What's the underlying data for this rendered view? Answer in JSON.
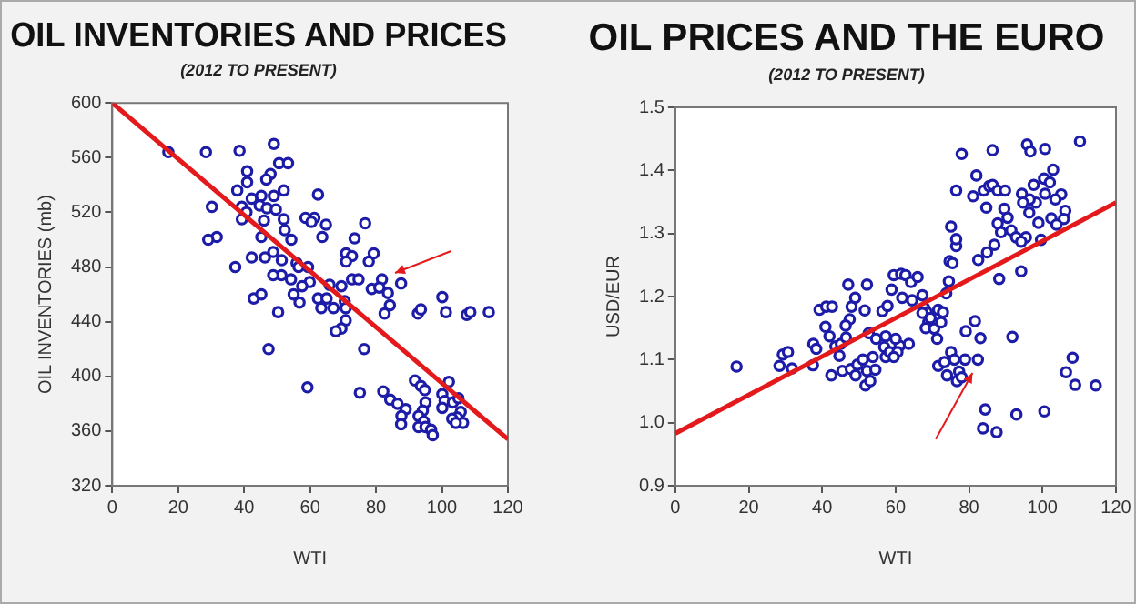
{
  "chart_data": [
    {
      "type": "scatter",
      "title": "OIL INVENTORIES AND PRICES",
      "subtitle": "(2012 TO PRESENT)",
      "xlabel": "WTI",
      "ylabel": "OIL INVENTORIES (mb)",
      "xlim": [
        0,
        120
      ],
      "xticks": [
        0,
        20,
        40,
        60,
        80,
        100,
        120
      ],
      "ylim": [
        320,
        600
      ],
      "yticks": [
        320,
        360,
        400,
        440,
        480,
        520,
        560,
        600
      ],
      "grid": false,
      "legend": false,
      "marker": "circle",
      "series": [
        {
          "type": "scatter",
          "color": "#1c1ca8",
          "x": [
            17,
            28.4,
            38.6,
            49,
            50.6,
            53.3,
            40.9,
            48,
            46.7,
            40.9,
            37.9,
            52,
            62.4,
            49,
            45.2,
            42.3,
            30.2,
            39.3,
            44.7,
            46.9,
            49.6,
            40.7,
            52,
            39.3,
            46,
            58.6,
            61.3,
            60.4,
            76.7,
            64.8,
            52.3,
            63.7,
            45.2,
            54.3,
            73.5,
            31.7,
            29.1,
            79.3,
            70.9,
            72.7,
            48.8,
            42.3,
            46.3,
            77.8,
            51.4,
            55.9,
            70.9,
            37.3,
            56.5,
            59.4,
            81.8,
            87.6,
            72.7,
            74.7,
            69.5,
            65.9,
            59.9,
            51.3,
            48.8,
            54.2,
            57.6,
            78.7,
            81,
            83.6,
            42.9,
            45.2,
            55,
            56.8,
            62.4,
            70.5,
            65,
            84.2,
            82.6,
            67.1,
            70.8,
            63.4,
            50.3,
            100.1,
            101.2,
            92.7,
            93.6,
            107.5,
            108.6,
            114.2,
            70.8,
            69.5,
            67.8,
            76.4,
            47.4,
            59.2,
            75.1,
            82.2,
            84.3,
            86.5,
            89,
            87.7,
            87.6,
            91.8,
            93.6,
            94.8,
            95,
            94.2,
            92.9,
            94.5,
            92.9,
            95,
            96.7,
            97.2,
            102.1,
            100.1,
            100.8,
            100.1,
            103.3,
            105,
            105.7,
            104.6,
            103.1,
            106.4,
            104.2
          ],
          "values": [
            564,
            564,
            565,
            570,
            556,
            556,
            550,
            548,
            544,
            542,
            536,
            536,
            533,
            532,
            532,
            530,
            524,
            524,
            525,
            523,
            522,
            520,
            515,
            515,
            514,
            516,
            516,
            513,
            512,
            511,
            507,
            502,
            502,
            500,
            501,
            502,
            500,
            490,
            490,
            488,
            491,
            487,
            487,
            484,
            485,
            483,
            484,
            480,
            480,
            480,
            471,
            468,
            471,
            471,
            466,
            467,
            469,
            474,
            474,
            471,
            466,
            464,
            465,
            461,
            457,
            460,
            460,
            454,
            457,
            455,
            457,
            452,
            446,
            450,
            450,
            450,
            447,
            458,
            447,
            446,
            449,
            445,
            447,
            447,
            441,
            435,
            433,
            420,
            420,
            392,
            388,
            389,
            383,
            380,
            376,
            371,
            365,
            397,
            393,
            390,
            381,
            375,
            371,
            367,
            363,
            363,
            361,
            357,
            396,
            387,
            382,
            377,
            381,
            384,
            374,
            370,
            369,
            366,
            366
          ]
        },
        {
          "type": "line",
          "color": "#e3191b",
          "line_style": "solid",
          "marker": "none",
          "x": [
            0,
            120
          ],
          "values": [
            600,
            354
          ]
        }
      ]
    },
    {
      "type": "scatter",
      "title": "OIL PRICES AND THE EURO",
      "subtitle": "(2012 TO PRESENT)",
      "xlabel": "WTI",
      "ylabel": "USD/EUR",
      "xlim": [
        0,
        120
      ],
      "xticks": [
        0,
        20,
        40,
        60,
        80,
        100,
        120
      ],
      "ylim": [
        0.9,
        1.5
      ],
      "yticks": [
        0.9,
        {
          "value": 1,
          "label": "1.0"
        },
        1.1,
        1.2,
        1.3,
        1.4,
        1.5
      ],
      "grid": false,
      "legend": false,
      "marker": "circle",
      "series": [
        {
          "type": "scatter",
          "color": "#1c1ca8",
          "x": [
            16.7,
            28.4,
            29.3,
            30.7,
            31.8,
            37.5,
            37.6,
            38.4,
            39.3,
            41.1,
            42.7,
            40.9,
            42,
            42.5,
            43.6,
            45.1,
            44.7,
            47.1,
            47.5,
            48,
            49,
            46.4,
            46.5,
            45.5,
            47.8,
            49.1,
            49.6,
            51.1,
            51.8,
            52.2,
            52.2,
            53.1,
            51.6,
            52.7,
            53.8,
            54.5,
            54.7,
            56.4,
            57.8,
            57.3,
            56.9,
            57.3,
            58.4,
            58.9,
            59.5,
            61.5,
            61.8,
            62.7,
            64.2,
            66,
            64.5,
            63.6,
            61.1,
            60,
            60.5,
            59.5,
            67.3,
            67.8,
            68.5,
            67.3,
            68.9,
            69.5,
            68.2,
            70.5,
            71.6,
            72.4,
            71.3,
            72.9,
            73.8,
            71.6,
            73.3,
            74,
            75.1,
            76,
            77.3,
            76.7,
            78,
            79.1,
            81.6,
            83.1,
            78.9,
            82.4,
            74.7,
            75.5,
            76.5,
            76.5,
            75.1,
            76.5,
            74.5,
            78,
            81.1,
            82,
            84,
            84.7,
            85.5,
            86.4,
            86.4,
            87.8,
            89.6,
            87.8,
            88.7,
            90.5,
            89.8,
            82.5,
            84.9,
            86.9,
            88.2,
            91.5,
            92.8,
            95.8,
            96.7,
            100.7,
            110.2,
            97.6,
            100.4,
            102.9,
            102,
            100.7,
            98.2,
            96.5,
            94.4,
            94.7,
            96.4,
            98.9,
            95.5,
            94.2,
            99.6,
            102.4,
            105.1,
            103.5,
            106.2,
            105.8,
            103.8,
            94.2,
            91.8,
            108.2,
            106.4,
            108.9,
            114.5,
            84.4,
            83.8,
            87.5,
            92.9,
            100.5
          ],
          "values": [
            1.089,
            1.09,
            1.108,
            1.112,
            1.086,
            1.091,
            1.125,
            1.117,
            1.179,
            1.184,
            1.184,
            1.152,
            1.137,
            1.075,
            1.121,
            1.125,
            1.106,
            1.219,
            1.164,
            1.184,
            1.198,
            1.154,
            1.135,
            1.082,
            1.085,
            1.075,
            1.092,
            1.1,
            1.059,
            1.219,
            1.082,
            1.066,
            1.178,
            1.142,
            1.104,
            1.084,
            1.133,
            1.177,
            1.185,
            1.137,
            1.12,
            1.104,
            1.112,
            1.211,
            1.234,
            1.236,
            1.198,
            1.234,
            1.223,
            1.231,
            1.194,
            1.125,
            1.122,
            1.133,
            1.112,
            1.104,
            1.202,
            1.182,
            1.175,
            1.174,
            1.159,
            1.166,
            1.15,
            1.149,
            1.179,
            1.159,
            1.133,
            1.175,
            1.205,
            1.09,
            1.096,
            1.075,
            1.112,
            1.1,
            1.081,
            1.066,
            1.072,
            1.145,
            1.161,
            1.134,
            1.1,
            1.1,
            1.256,
            1.253,
            1.28,
            1.291,
            1.311,
            1.368,
            1.224,
            1.426,
            1.359,
            1.392,
            1.368,
            1.341,
            1.375,
            1.432,
            1.377,
            1.368,
            1.339,
            1.316,
            1.302,
            1.325,
            1.368,
            1.258,
            1.27,
            1.282,
            1.228,
            1.305,
            1.294,
            1.441,
            1.43,
            1.434,
            1.446,
            1.377,
            1.387,
            1.401,
            1.381,
            1.363,
            1.349,
            1.354,
            1.363,
            1.349,
            1.333,
            1.317,
            1.294,
            1.287,
            1.29,
            1.324,
            1.362,
            1.354,
            1.336,
            1.323,
            1.314,
            1.24,
            1.136,
            1.103,
            1.08,
            1.06,
            1.059,
            1.021,
            0.991,
            0.985,
            1.013,
            1.018
          ]
        },
        {
          "type": "line",
          "color": "#e3191b",
          "line_style": "solid",
          "marker": "none",
          "x": [
            0,
            120
          ],
          "values": [
            0.983,
            1.349
          ]
        }
      ]
    }
  ]
}
